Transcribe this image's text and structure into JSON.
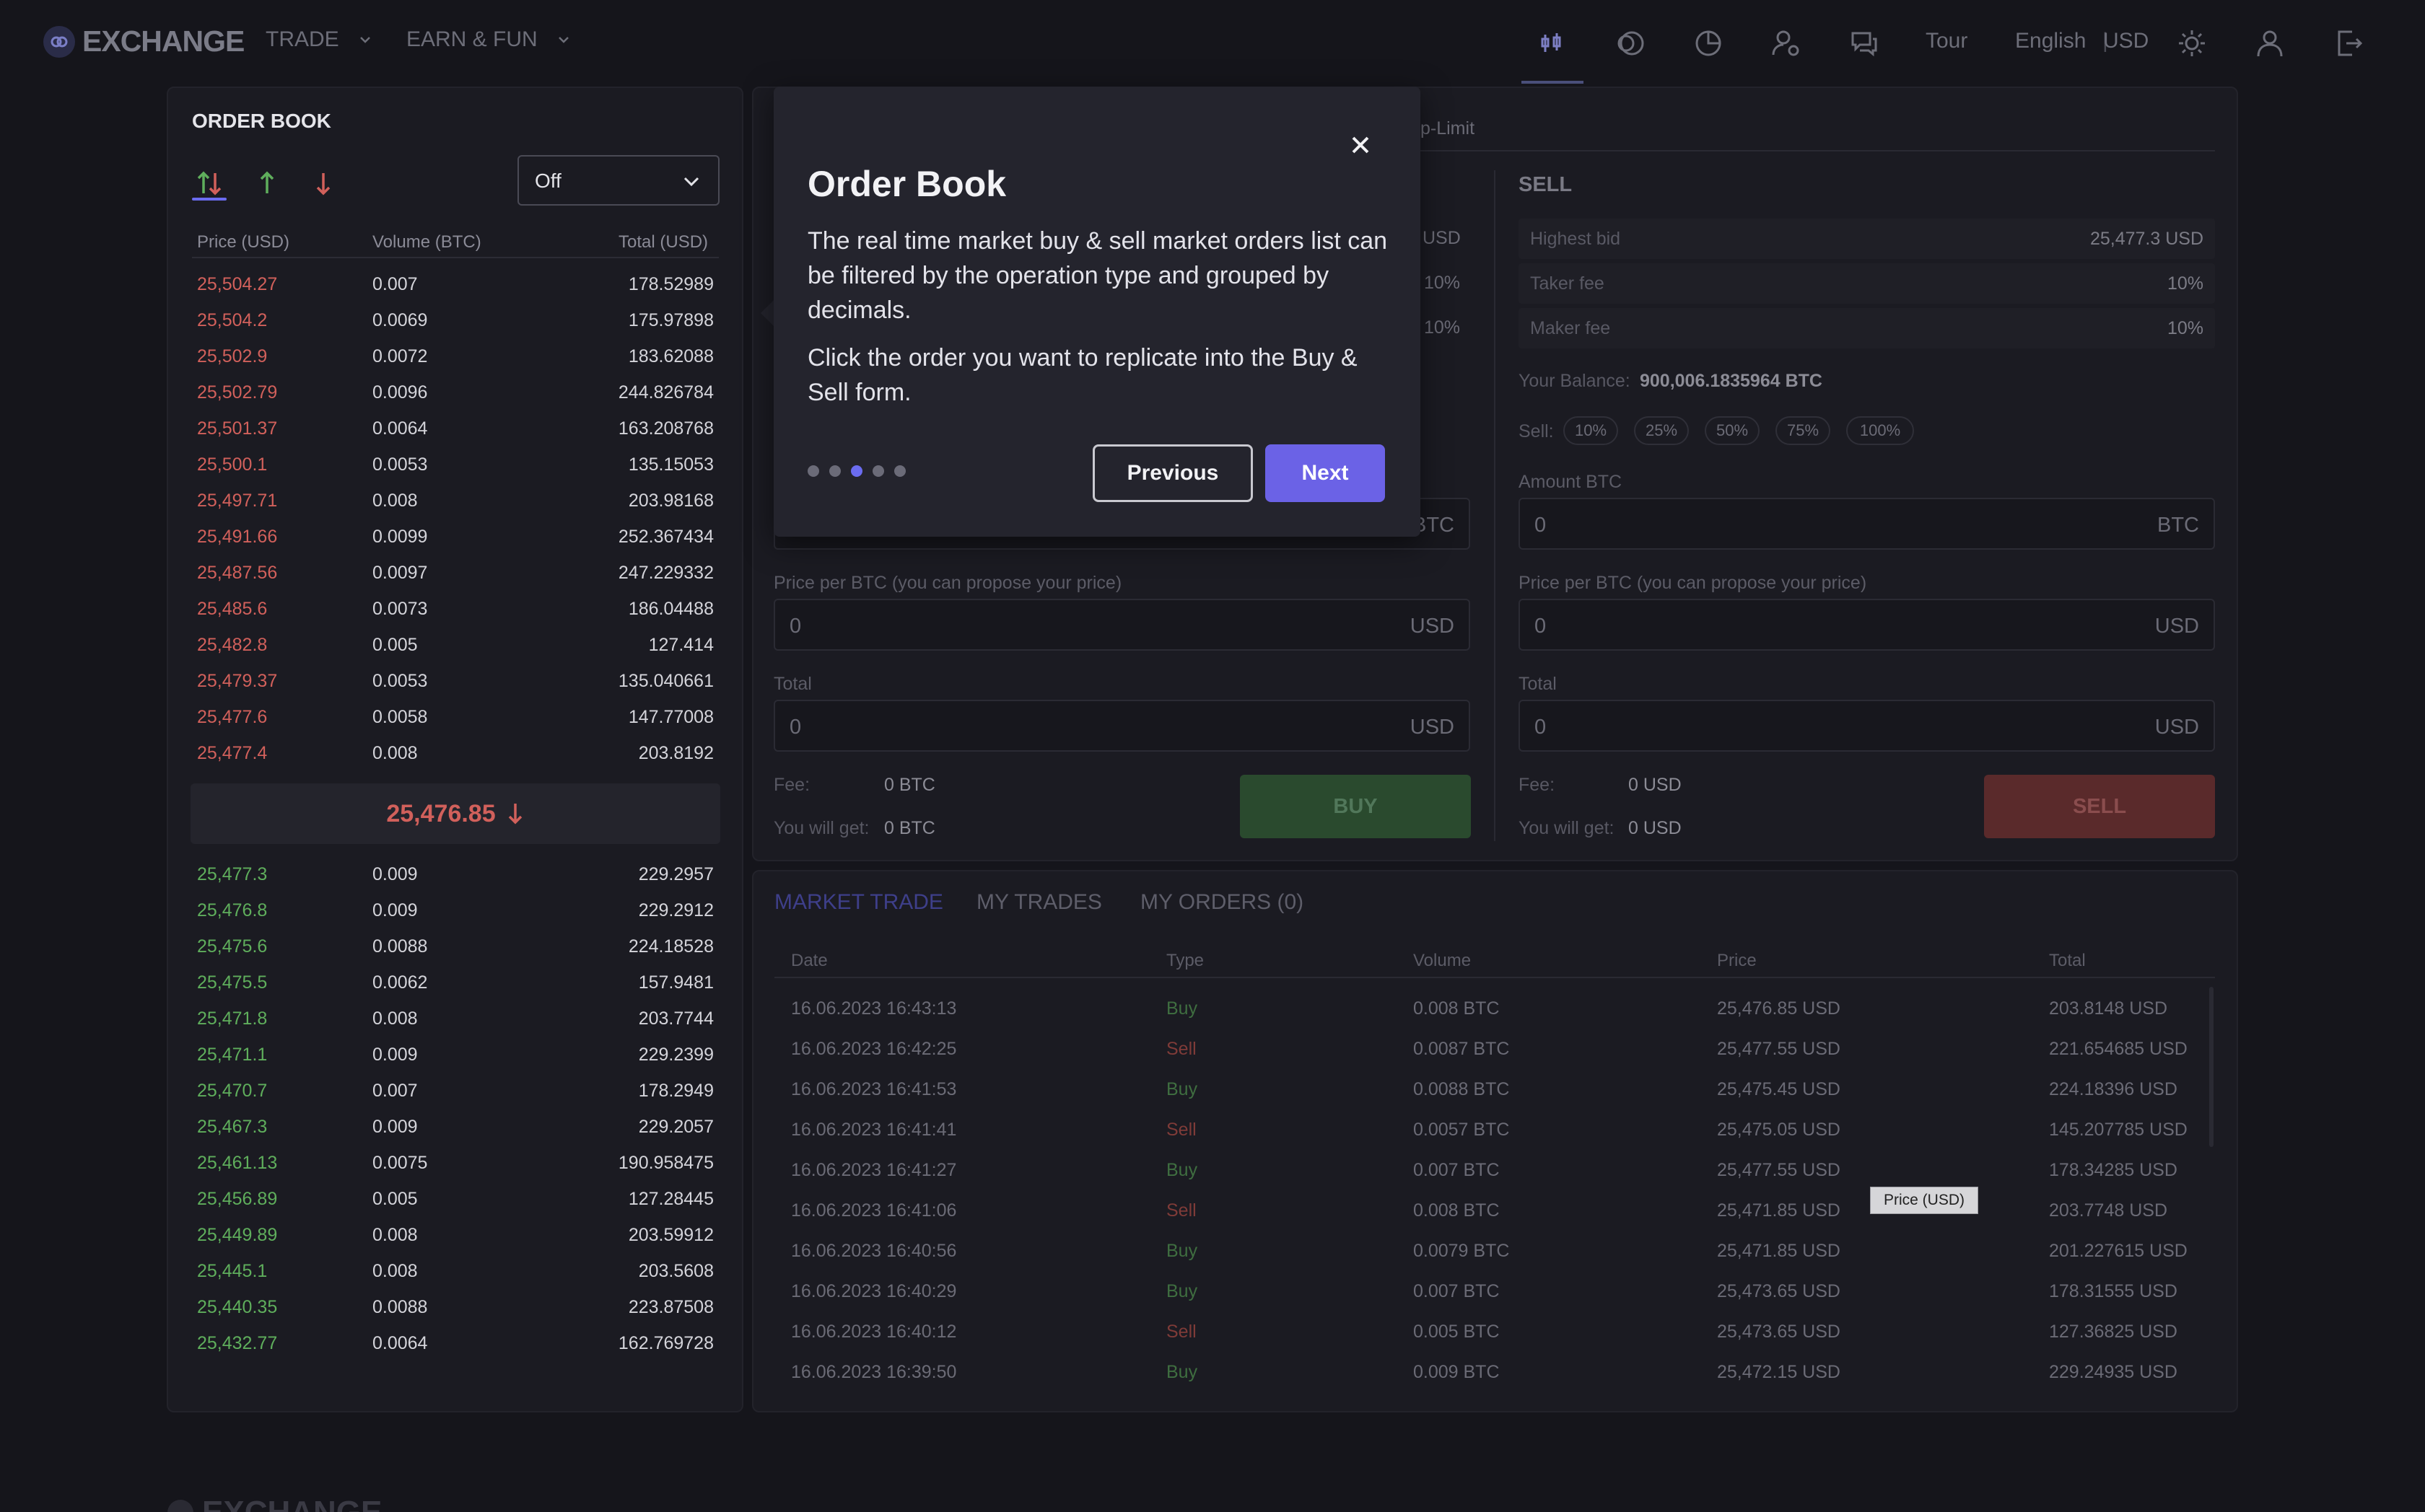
{
  "nav": {
    "logo": "EXCHANGE",
    "menu": [
      "TRADE",
      "EARN & FUN"
    ],
    "tour": "Tour",
    "language": "English",
    "currency": "USD"
  },
  "order_book": {
    "title": "ORDER BOOK",
    "group_select": "Off",
    "headers": [
      "Price (USD)",
      "Volume (BTC)",
      "Total (USD)"
    ],
    "asks": [
      [
        "25,504.27",
        "0.007",
        "178.52989"
      ],
      [
        "25,504.2",
        "0.0069",
        "175.97898"
      ],
      [
        "25,502.9",
        "0.0072",
        "183.62088"
      ],
      [
        "25,502.79",
        "0.0096",
        "244.826784"
      ],
      [
        "25,501.37",
        "0.0064",
        "163.208768"
      ],
      [
        "25,500.1",
        "0.0053",
        "135.15053"
      ],
      [
        "25,497.71",
        "0.008",
        "203.98168"
      ],
      [
        "25,491.66",
        "0.0099",
        "252.367434"
      ],
      [
        "25,487.56",
        "0.0097",
        "247.229332"
      ],
      [
        "25,485.6",
        "0.0073",
        "186.04488"
      ],
      [
        "25,482.8",
        "0.005",
        "127.414"
      ],
      [
        "25,479.37",
        "0.0053",
        "135.040661"
      ],
      [
        "25,477.6",
        "0.0058",
        "147.77008"
      ],
      [
        "25,477.4",
        "0.008",
        "203.8192"
      ]
    ],
    "last_price": "25,476.85",
    "bids": [
      [
        "25,477.3",
        "0.009",
        "229.2957"
      ],
      [
        "25,476.8",
        "0.009",
        "229.2912"
      ],
      [
        "25,475.6",
        "0.0088",
        "224.18528"
      ],
      [
        "25,475.5",
        "0.0062",
        "157.9481"
      ],
      [
        "25,471.8",
        "0.008",
        "203.7744"
      ],
      [
        "25,471.1",
        "0.009",
        "229.2399"
      ],
      [
        "25,470.7",
        "0.007",
        "178.2949"
      ],
      [
        "25,467.3",
        "0.009",
        "229.2057"
      ],
      [
        "25,461.13",
        "0.0075",
        "190.958475"
      ],
      [
        "25,456.89",
        "0.005",
        "127.28445"
      ],
      [
        "25,449.89",
        "0.008",
        "203.59912"
      ],
      [
        "25,445.1",
        "0.008",
        "203.5608"
      ],
      [
        "25,440.35",
        "0.0088",
        "223.87508"
      ],
      [
        "25,432.77",
        "0.0064",
        "162.769728"
      ]
    ]
  },
  "buy_form": {
    "tab_fragment": "p-Limit",
    "highest_unit": "USD",
    "taker_pct": "10%",
    "maker_pct": "10%",
    "amount_unit": "BTC",
    "price_label": "Price per BTC (you can propose your price)",
    "price_value": "0",
    "price_unit": "USD",
    "total_label": "Total",
    "total_value": "0",
    "total_unit": "USD",
    "fee_label": "Fee:",
    "fee_value": "0 BTC",
    "get_label": "You will get:",
    "get_value": "0 BTC",
    "button": "BUY"
  },
  "sell_form": {
    "title": "SELL",
    "highest_bid_label": "Highest bid",
    "highest_bid_value": "25,477.3 USD",
    "taker_label": "Taker fee",
    "taker_value": "10%",
    "maker_label": "Maker fee",
    "maker_value": "10%",
    "balance_label": "Your Balance:",
    "balance_value": "900,006.1835964 BTC",
    "sell_label": "Sell:",
    "percents": [
      "10%",
      "25%",
      "50%",
      "75%",
      "100%"
    ],
    "amount_label": "Amount BTC",
    "amount_value": "0",
    "amount_unit": "BTC",
    "price_label": "Price per BTC (you can propose your price)",
    "price_value": "0",
    "price_unit": "USD",
    "total_label": "Total",
    "total_value": "0",
    "total_unit": "USD",
    "fee_label": "Fee:",
    "fee_value": "0 USD",
    "get_label": "You will get:",
    "get_value": "0 USD",
    "button": "SELL"
  },
  "trades": {
    "tabs": [
      "MARKET TRADE",
      "MY TRADES",
      "MY ORDERS (0)"
    ],
    "headers": [
      "Date",
      "Type",
      "Volume",
      "Price",
      "Total"
    ],
    "rows": [
      [
        "16.06.2023 16:43:13",
        "Buy",
        "0.008 BTC",
        "25,476.85 USD",
        "203.8148 USD"
      ],
      [
        "16.06.2023 16:42:25",
        "Sell",
        "0.0087 BTC",
        "25,477.55 USD",
        "221.654685 USD"
      ],
      [
        "16.06.2023 16:41:53",
        "Buy",
        "0.0088 BTC",
        "25,475.45 USD",
        "224.18396 USD"
      ],
      [
        "16.06.2023 16:41:41",
        "Sell",
        "0.0057 BTC",
        "25,475.05 USD",
        "145.207785 USD"
      ],
      [
        "16.06.2023 16:41:27",
        "Buy",
        "0.007 BTC",
        "25,477.55 USD",
        "178.34285 USD"
      ],
      [
        "16.06.2023 16:41:06",
        "Sell",
        "0.008 BTC",
        "25,471.85 USD",
        "203.7748 USD"
      ],
      [
        "16.06.2023 16:40:56",
        "Buy",
        "0.0079 BTC",
        "25,471.85 USD",
        "201.227615 USD"
      ],
      [
        "16.06.2023 16:40:29",
        "Buy",
        "0.007 BTC",
        "25,473.65 USD",
        "178.31555 USD"
      ],
      [
        "16.06.2023 16:40:12",
        "Sell",
        "0.005 BTC",
        "25,473.65 USD",
        "127.36825 USD"
      ],
      [
        "16.06.2023 16:39:50",
        "Buy",
        "0.009 BTC",
        "25,472.15 USD",
        "229.24935 USD"
      ]
    ],
    "tooltip": "Price (USD)"
  },
  "tour": {
    "title": "Order Book",
    "p1": "The real time market buy & sell market orders list can be filtered by the operation type and grouped by decimals.",
    "p2": "Click the order you want to replicate into the Buy & Sell form.",
    "prev": "Previous",
    "next": "Next",
    "step": 3,
    "steps": 5
  },
  "footer": {
    "logo": "EXCHANGE"
  },
  "colors": {
    "ask": "#d1605b",
    "bid": "#5fae5c",
    "accent": "#6b62e6"
  }
}
